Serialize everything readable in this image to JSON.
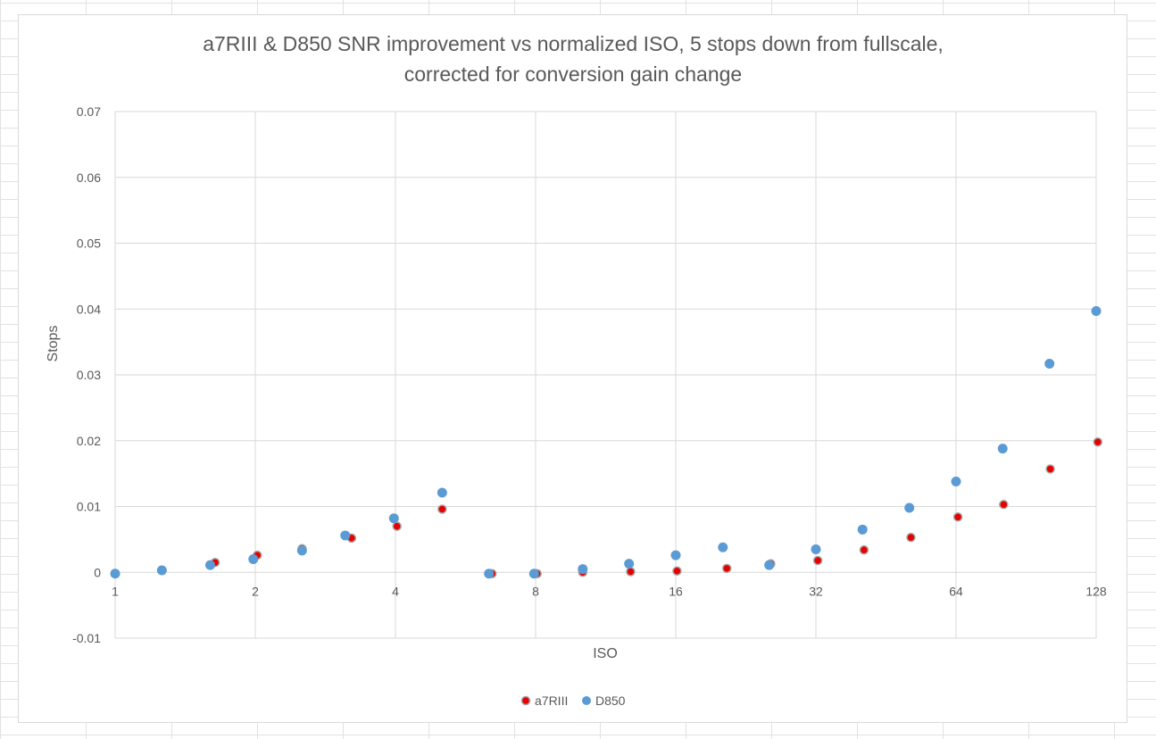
{
  "chart_data": {
    "type": "scatter",
    "title_lines": [
      "a7RIII & D850 SNR improvement vs normalized ISO, 5 stops down from fullscale,",
      "corrected for conversion gain change"
    ],
    "xlabel": "ISO",
    "ylabel": "Stops",
    "x_scale": "log2",
    "xlim": [
      1,
      128
    ],
    "ylim": [
      -0.01,
      0.07
    ],
    "x_ticks": [
      1,
      2,
      4,
      8,
      16,
      32,
      64,
      128
    ],
    "x_tick_labels": [
      "1",
      "2",
      "4",
      "8",
      "16",
      "32",
      "64",
      "128"
    ],
    "y_ticks": [
      -0.01,
      0,
      0.01,
      0.02,
      0.03,
      0.04,
      0.05,
      0.06,
      0.07
    ],
    "y_tick_labels": [
      "-0.01",
      "0",
      "0.01",
      "0.02",
      "0.03",
      "0.04",
      "0.05",
      "0.06",
      "0.07"
    ],
    "grid": true,
    "legend_position": "bottom",
    "series": [
      {
        "name": "a7RIII",
        "color": "#e60000",
        "edge_color": "#a6a6a6",
        "points": [
          {
            "x": 1.0,
            "y": -0.0002
          },
          {
            "x": 1.26,
            "y": 0.0003
          },
          {
            "x": 1.64,
            "y": 0.0015
          },
          {
            "x": 2.02,
            "y": 0.0026
          },
          {
            "x": 2.52,
            "y": 0.0036
          },
          {
            "x": 3.22,
            "y": 0.0052
          },
          {
            "x": 4.03,
            "y": 0.007
          },
          {
            "x": 5.04,
            "y": 0.0096
          },
          {
            "x": 6.45,
            "y": -0.0002
          },
          {
            "x": 8.06,
            "y": -0.0002
          },
          {
            "x": 10.1,
            "y": 0.0
          },
          {
            "x": 12.8,
            "y": 0.0001
          },
          {
            "x": 16.1,
            "y": 0.0002
          },
          {
            "x": 20.6,
            "y": 0.0006
          },
          {
            "x": 25.6,
            "y": 0.0013
          },
          {
            "x": 32.3,
            "y": 0.0018
          },
          {
            "x": 40.6,
            "y": 0.0034
          },
          {
            "x": 51.2,
            "y": 0.0053
          },
          {
            "x": 64.6,
            "y": 0.0084
          },
          {
            "x": 81.0,
            "y": 0.0103
          },
          {
            "x": 102,
            "y": 0.0157
          },
          {
            "x": 129,
            "y": 0.0198
          }
        ]
      },
      {
        "name": "D850",
        "color": "#5b9bd5",
        "edge_color": "#5b9bd5",
        "points": [
          {
            "x": 1.0,
            "y": -0.0002
          },
          {
            "x": 1.26,
            "y": 0.0003
          },
          {
            "x": 1.6,
            "y": 0.0011
          },
          {
            "x": 1.98,
            "y": 0.002
          },
          {
            "x": 2.52,
            "y": 0.0033
          },
          {
            "x": 3.12,
            "y": 0.0056
          },
          {
            "x": 3.97,
            "y": 0.0082
          },
          {
            "x": 5.04,
            "y": 0.0121
          },
          {
            "x": 6.35,
            "y": -0.0002
          },
          {
            "x": 7.94,
            "y": -0.0002
          },
          {
            "x": 10.1,
            "y": 0.0005
          },
          {
            "x": 12.7,
            "y": 0.0013
          },
          {
            "x": 16.0,
            "y": 0.0026
          },
          {
            "x": 20.2,
            "y": 0.0038
          },
          {
            "x": 25.4,
            "y": 0.0011
          },
          {
            "x": 32.0,
            "y": 0.0035
          },
          {
            "x": 40.3,
            "y": 0.0065
          },
          {
            "x": 50.8,
            "y": 0.0098
          },
          {
            "x": 64.0,
            "y": 0.0138
          },
          {
            "x": 80.6,
            "y": 0.0188
          },
          {
            "x": 101.6,
            "y": 0.0317
          },
          {
            "x": 128,
            "y": 0.0397
          }
        ]
      }
    ]
  }
}
